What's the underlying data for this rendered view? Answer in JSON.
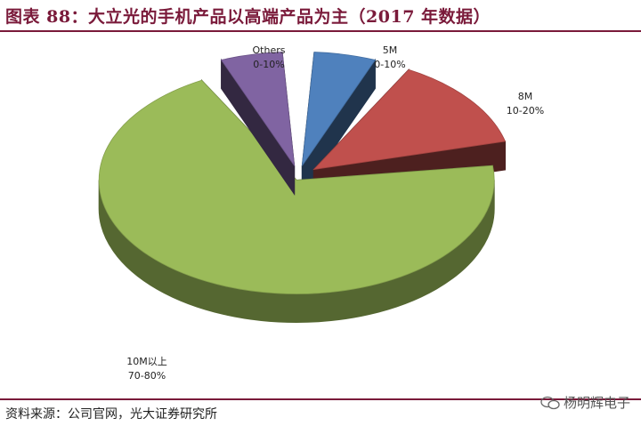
{
  "header": {
    "title": "图表 88：大立光的手机产品以高端产品为主（2017 年数据）"
  },
  "footer": {
    "source": "资料来源：公司官网，光大证券研究所",
    "watermark": "杨明辉电子"
  },
  "chart_data": {
    "type": "pie",
    "title": "图表 88：大立光的手机产品以高端产品为主（2017 年数据）",
    "slices": [
      {
        "name": "5M",
        "range": "0-10%",
        "value": 7,
        "color": "#4f81bd"
      },
      {
        "name": "8M",
        "range": "10-20%",
        "value": 15,
        "color": "#c0504d"
      },
      {
        "name": "10M以上",
        "range": "70-80%",
        "value": 71,
        "color": "#9bbb59"
      },
      {
        "name": "Others",
        "range": "0-10%",
        "value": 7,
        "color": "#8064a2"
      }
    ],
    "style": "3D exploded",
    "legend": "none (labels beside slices)"
  }
}
